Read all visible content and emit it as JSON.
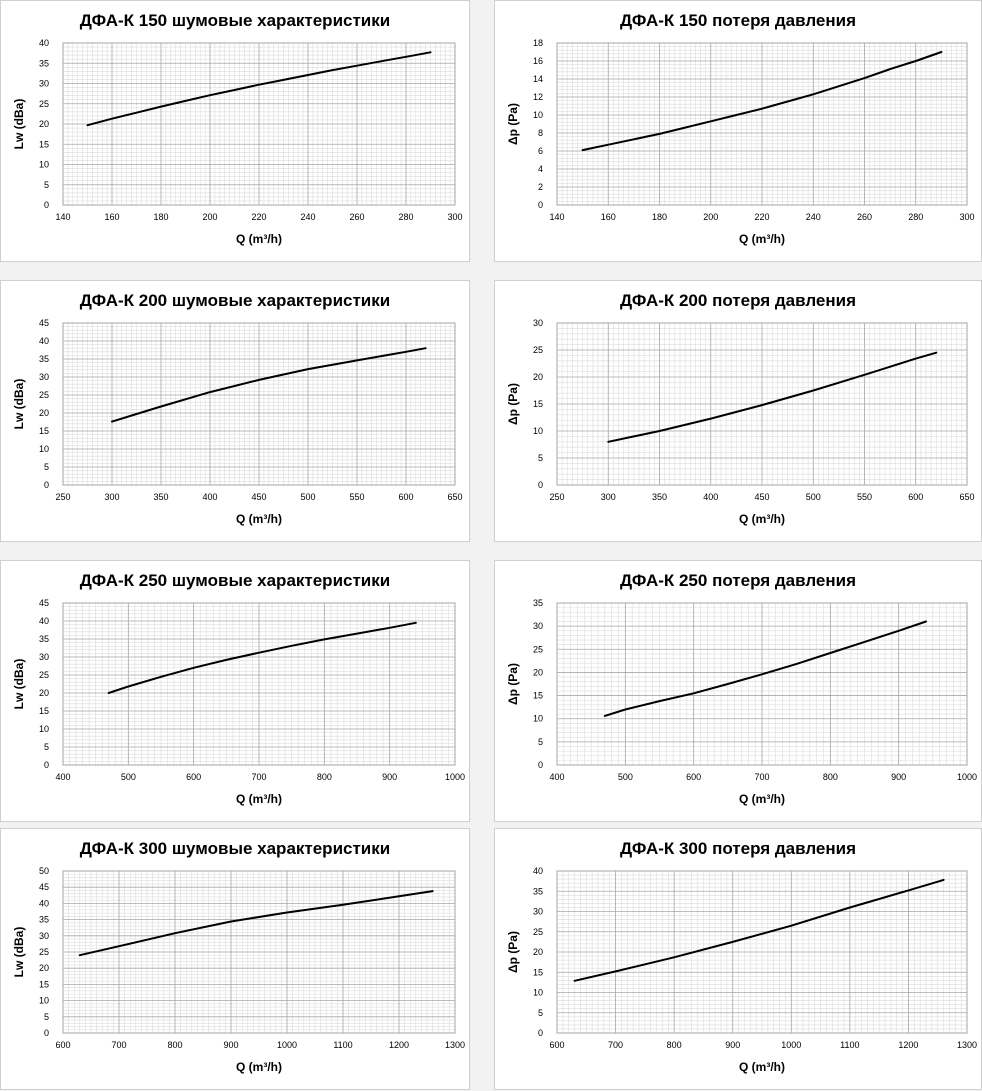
{
  "colors": {
    "line": "#000000",
    "grid_major": "#a6a6a6",
    "grid_minor": "#dcdcdc",
    "panel_bg": "#ffffff",
    "page_bg": "#f2f2f2"
  },
  "chart_data": [
    {
      "id": "noise-150",
      "type": "line",
      "title": "ДФА-К 150 шумовые характеристики",
      "xlabel": "Q (m³/h)",
      "ylabel": "Lw (dBa)",
      "xlim": [
        140,
        300
      ],
      "xticks": [
        140,
        160,
        180,
        200,
        220,
        240,
        260,
        280,
        300
      ],
      "ylim": [
        0,
        40
      ],
      "yticks": [
        0,
        5,
        10,
        15,
        20,
        25,
        30,
        35,
        40
      ],
      "grid": true,
      "series": [
        {
          "x": [
            150,
            160,
            170,
            180,
            190,
            200,
            210,
            220,
            230,
            240,
            250,
            260,
            270,
            280,
            290
          ],
          "y": [
            19.7,
            21.3,
            22.8,
            24.3,
            25.7,
            27.1,
            28.4,
            29.7,
            30.9,
            32.1,
            33.3,
            34.4,
            35.5,
            36.6,
            37.7
          ]
        }
      ]
    },
    {
      "id": "pressure-150",
      "type": "line",
      "title": "ДФА-К 150 потеря давления",
      "xlabel": "Q (m³/h)",
      "ylabel": "Δp (Pa)",
      "xlim": [
        140,
        300
      ],
      "xticks": [
        140,
        160,
        180,
        200,
        220,
        240,
        260,
        280,
        300
      ],
      "ylim": [
        0,
        18
      ],
      "yticks": [
        0,
        2,
        4,
        6,
        8,
        10,
        12,
        14,
        16,
        18
      ],
      "grid": true,
      "series": [
        {
          "x": [
            150,
            160,
            170,
            180,
            190,
            200,
            210,
            220,
            230,
            240,
            250,
            260,
            270,
            280,
            290
          ],
          "y": [
            6.1,
            6.7,
            7.3,
            7.9,
            8.6,
            9.3,
            10.0,
            10.7,
            11.5,
            12.3,
            13.2,
            14.1,
            15.1,
            16.0,
            17.0
          ]
        }
      ]
    },
    {
      "id": "noise-200",
      "type": "line",
      "title": "ДФА-К 200 шумовые характеристики",
      "xlabel": "Q (m³/h)",
      "ylabel": "Lw (dBa)",
      "xlim": [
        250,
        650
      ],
      "xticks": [
        250,
        300,
        350,
        400,
        450,
        500,
        550,
        600,
        650
      ],
      "ylim": [
        0,
        45
      ],
      "yticks": [
        0,
        5,
        10,
        15,
        20,
        25,
        30,
        35,
        40,
        45
      ],
      "grid": true,
      "series": [
        {
          "x": [
            300,
            350,
            400,
            450,
            500,
            550,
            600,
            620
          ],
          "y": [
            17.6,
            21.8,
            25.8,
            29.2,
            32.2,
            34.6,
            37.0,
            38.0
          ]
        }
      ]
    },
    {
      "id": "pressure-200",
      "type": "line",
      "title": "ДФА-К 200 потеря давления",
      "xlabel": "Q (m³/h)",
      "ylabel": "Δp (Pa)",
      "xlim": [
        250,
        650
      ],
      "xticks": [
        250,
        300,
        350,
        400,
        450,
        500,
        550,
        600,
        650
      ],
      "ylim": [
        0,
        30
      ],
      "yticks": [
        0,
        5,
        10,
        15,
        20,
        25,
        30
      ],
      "grid": true,
      "series": [
        {
          "x": [
            300,
            350,
            400,
            450,
            500,
            550,
            600,
            620
          ],
          "y": [
            8.0,
            10.0,
            12.3,
            14.8,
            17.5,
            20.4,
            23.4,
            24.5
          ]
        }
      ]
    },
    {
      "id": "noise-250",
      "type": "line",
      "title": "ДФА-К 250 шумовые характеристики",
      "xlabel": "Q (m³/h)",
      "ylabel": "Lw (dBa)",
      "xlim": [
        400,
        1000
      ],
      "xticks": [
        400,
        500,
        600,
        700,
        800,
        900,
        1000
      ],
      "ylim": [
        0,
        45
      ],
      "yticks": [
        0,
        5,
        10,
        15,
        20,
        25,
        30,
        35,
        40,
        45
      ],
      "grid": true,
      "series": [
        {
          "x": [
            470,
            500,
            550,
            600,
            650,
            700,
            750,
            800,
            850,
            900,
            940
          ],
          "y": [
            20.0,
            21.8,
            24.5,
            27.0,
            29.2,
            31.2,
            33.1,
            34.9,
            36.5,
            38.1,
            39.5
          ]
        }
      ]
    },
    {
      "id": "pressure-250",
      "type": "line",
      "title": "ДФА-К 250 потеря давления",
      "xlabel": "Q (m³/h)",
      "ylabel": "Δp (Pa)",
      "xlim": [
        400,
        1000
      ],
      "xticks": [
        400,
        500,
        600,
        700,
        800,
        900,
        1000
      ],
      "ylim": [
        0,
        35
      ],
      "yticks": [
        0,
        5,
        10,
        15,
        20,
        25,
        30,
        35
      ],
      "grid": true,
      "series": [
        {
          "x": [
            470,
            500,
            550,
            600,
            650,
            700,
            750,
            800,
            850,
            900,
            940
          ],
          "y": [
            10.6,
            12.0,
            13.8,
            15.5,
            17.5,
            19.6,
            21.8,
            24.2,
            26.6,
            29.0,
            31.0
          ]
        }
      ]
    },
    {
      "id": "noise-300",
      "type": "line",
      "title": "ДФА-К 300 шумовые характеристики",
      "xlabel": "Q (m³/h)",
      "ylabel": "Lw (dBa)",
      "xlim": [
        600,
        1300
      ],
      "xticks": [
        600,
        700,
        800,
        900,
        1000,
        1100,
        1200,
        1300
      ],
      "ylim": [
        0,
        50
      ],
      "yticks": [
        0,
        5,
        10,
        15,
        20,
        25,
        30,
        35,
        40,
        45,
        50
      ],
      "grid": true,
      "series": [
        {
          "x": [
            630,
            700,
            800,
            900,
            1000,
            1100,
            1200,
            1260
          ],
          "y": [
            24.0,
            26.8,
            30.8,
            34.4,
            37.2,
            39.6,
            42.2,
            43.8
          ]
        }
      ]
    },
    {
      "id": "pressure-300",
      "type": "line",
      "title": "ДФА-К 300 потеря давления",
      "xlabel": "Q (m³/h)",
      "ylabel": "Δp (Pa)",
      "xlim": [
        600,
        1300
      ],
      "xticks": [
        600,
        700,
        800,
        900,
        1000,
        1100,
        1200,
        1300
      ],
      "ylim": [
        0,
        40
      ],
      "yticks": [
        0,
        5,
        10,
        15,
        20,
        25,
        30,
        35,
        40
      ],
      "grid": true,
      "series": [
        {
          "x": [
            630,
            700,
            800,
            900,
            1000,
            1100,
            1200,
            1260
          ],
          "y": [
            12.9,
            15.2,
            18.7,
            22.5,
            26.5,
            31.0,
            35.2,
            37.8
          ]
        }
      ]
    }
  ]
}
